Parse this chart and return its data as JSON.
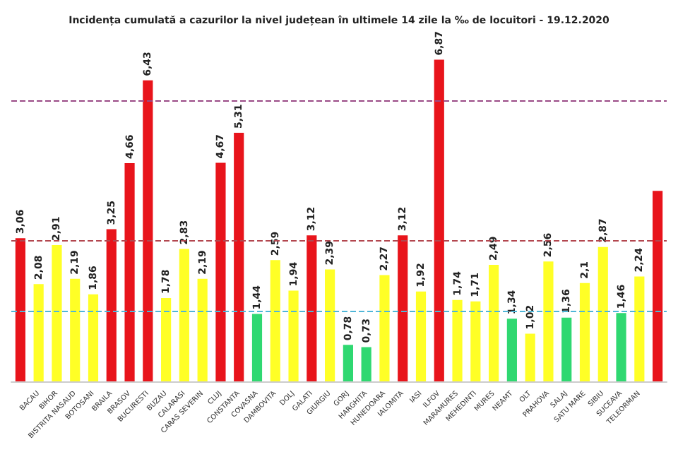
{
  "chart_data": {
    "type": "bar",
    "title": "Incidența cumulată a cazurilor la nivel județean în ultimele 14 zile la ‰ de locuitori - 19.12.2020",
    "categories": [
      null,
      "BACAU",
      "BIHOR",
      "BISTRITA NASAUD",
      "BOTOSANI",
      "BRAILA",
      "BRASOV",
      "BUCURESTI",
      "BUZAU",
      "CALARASI",
      "CARAS SEVERIN",
      "CLUJ",
      "CONSTANTA",
      "COVASNA",
      "DAMBOVITA",
      "DOLJ",
      "GALATI",
      "GIURGIU",
      "GORJ",
      "HARGHITA",
      "HUNEDOARA",
      "IALOMITA",
      "IASI",
      "ILFOV",
      "MARAMURES",
      "MEHEDINTI",
      "MURES",
      "NEAMT",
      "OLT",
      "PRAHOVA",
      "SALAJ",
      "SATU MARE",
      "SIBIU",
      "SUCEAVA",
      "TELEORMAN",
      null
    ],
    "values": [
      3.06,
      2.08,
      2.91,
      2.19,
      1.86,
      3.25,
      4.66,
      6.43,
      1.78,
      2.83,
      2.19,
      4.67,
      5.31,
      1.44,
      2.59,
      1.94,
      3.12,
      2.39,
      0.78,
      0.73,
      2.27,
      3.12,
      1.92,
      6.87,
      1.74,
      1.71,
      2.49,
      1.34,
      1.02,
      2.56,
      1.36,
      2.1,
      2.87,
      1.46,
      2.24,
      4.07
    ],
    "value_labels": [
      "3,06",
      "2,08",
      "2,91",
      "2,19",
      "1,86",
      "3,25",
      "4,66",
      "6,43",
      "1,78",
      "2,83",
      "2,19",
      "4,67",
      "5,31",
      "1,44",
      "2,59",
      "1,94",
      "3,12",
      "2,39",
      "0,78",
      "0,73",
      "2,27",
      "3,12",
      "1,92",
      "6,87",
      "1,74",
      "1,71",
      "2,49",
      "1,34",
      "1,02",
      "2,56",
      "1,36",
      "2,1",
      "2,87",
      "1,46",
      "2,24",
      null
    ],
    "colors": [
      "#e8141b",
      "#ffff26",
      "#ffff26",
      "#ffff26",
      "#ffff26",
      "#e8141b",
      "#e8141b",
      "#e8141b",
      "#ffff26",
      "#ffff26",
      "#ffff26",
      "#e8141b",
      "#e8141b",
      "#2fd871",
      "#ffff26",
      "#ffff26",
      "#e8141b",
      "#ffff26",
      "#2fd871",
      "#2fd871",
      "#ffff26",
      "#e8141b",
      "#ffff26",
      "#e8141b",
      "#ffff26",
      "#ffff26",
      "#ffff26",
      "#2fd871",
      "#ffff26",
      "#ffff26",
      "#2fd871",
      "#ffff26",
      "#ffff26",
      "#2fd871",
      "#ffff26",
      "#e8141b"
    ],
    "ref_lines": [
      {
        "axis": "y",
        "value": 6,
        "color": "#9a4a86",
        "line_style": "dashed"
      },
      {
        "axis": "y",
        "value": 3,
        "color": "#b3474f",
        "line_style": "dashed"
      },
      {
        "axis": "y",
        "value": 1.5,
        "color": "#4fb6d8",
        "line_style": "dashed"
      }
    ]
  }
}
